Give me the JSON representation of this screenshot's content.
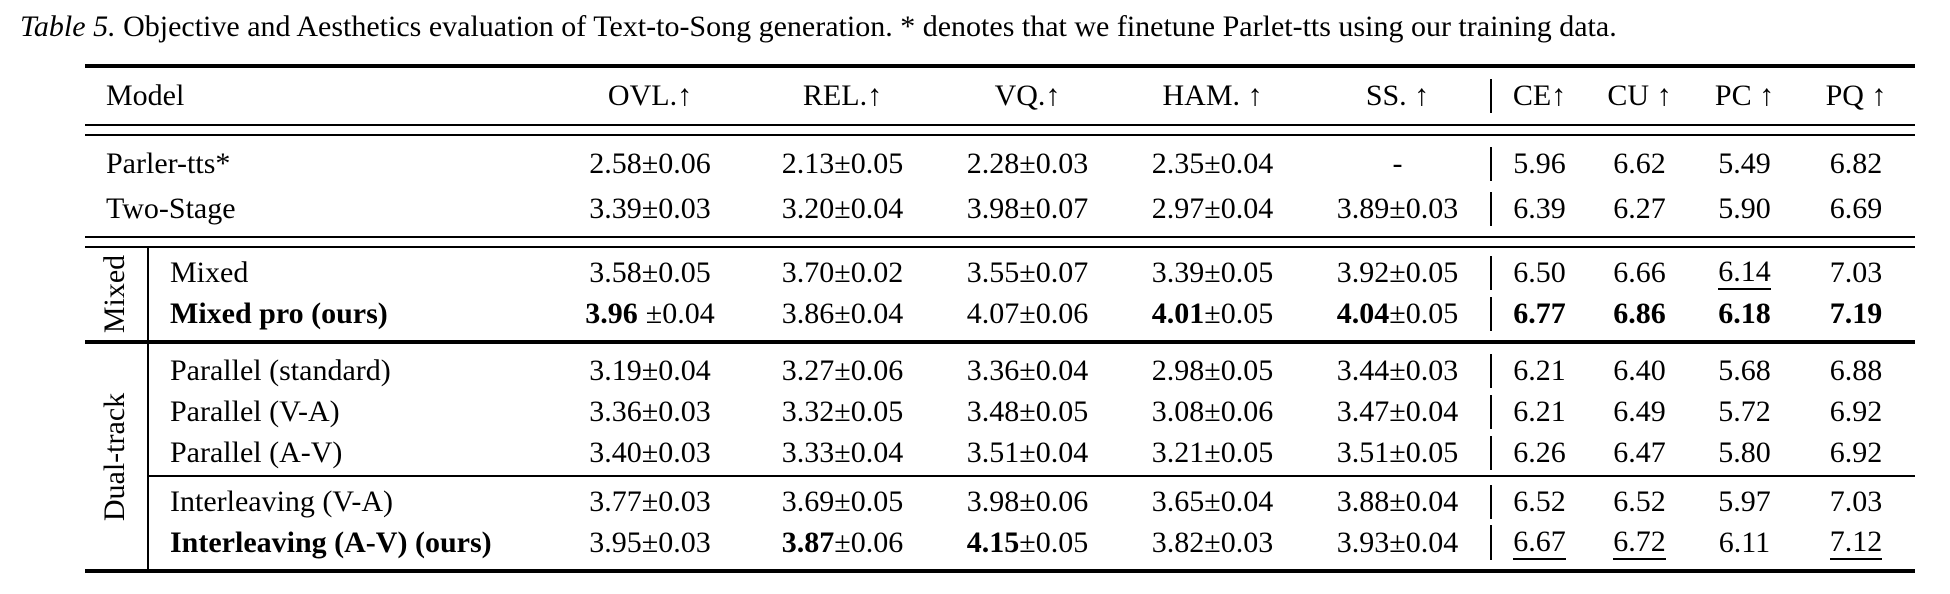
{
  "colors": {
    "ink": "#000000",
    "paper": "#ffffff"
  },
  "caption": {
    "title": "Table 5.",
    "body": " Objective and Aesthetics evaluation of Text-to-Song generation. * denotes that we finetune Parlet-tts using our training data."
  },
  "table": {
    "header": {
      "model": "Model",
      "metrics": [
        "OVL.↑",
        "REL.↑",
        "VQ.↑",
        "HAM. ↑",
        "SS. ↑"
      ],
      "aesthetics": [
        "CE↑",
        "CU ↑",
        "PC ↑",
        "PQ ↑"
      ]
    },
    "sections": [
      {
        "label": "",
        "groups": [
          [
            {
              "model": "Parler-tts*",
              "bold": false,
              "metrics": [
                {
                  "v": "2.58",
                  "pm": "±0.06"
                },
                {
                  "v": "2.13",
                  "pm": "±0.05"
                },
                {
                  "v": "2.28",
                  "pm": "±0.03"
                },
                {
                  "v": "2.35",
                  "pm": "±0.04"
                },
                {
                  "v": "-"
                }
              ],
              "aesthetics": [
                {
                  "v": "5.96"
                },
                {
                  "v": "6.62"
                },
                {
                  "v": "5.49"
                },
                {
                  "v": "6.82"
                }
              ]
            },
            {
              "model": "Two-Stage",
              "bold": false,
              "metrics": [
                {
                  "v": "3.39",
                  "pm": "±0.03"
                },
                {
                  "v": "3.20",
                  "pm": "±0.04"
                },
                {
                  "v": "3.98",
                  "pm": "±0.07"
                },
                {
                  "v": "2.97",
                  "pm": "±0.04"
                },
                {
                  "v": "3.89",
                  "pm": "±0.03"
                }
              ],
              "aesthetics": [
                {
                  "v": "6.39"
                },
                {
                  "v": "6.27"
                },
                {
                  "v": "5.90"
                },
                {
                  "v": "6.69"
                }
              ]
            }
          ]
        ]
      },
      {
        "label": "Mixed",
        "groups": [
          [
            {
              "model": "Mixed",
              "bold": false,
              "metrics": [
                {
                  "v": "3.58",
                  "pm": "±0.05"
                },
                {
                  "v": "3.70",
                  "pm": "±0.02"
                },
                {
                  "v": "3.55",
                  "pm": "±0.07"
                },
                {
                  "v": "3.39",
                  "pm": "±0.05"
                },
                {
                  "v": "3.92",
                  "pm": "±0.05"
                }
              ],
              "aesthetics": [
                {
                  "v": "6.50"
                },
                {
                  "v": "6.66"
                },
                {
                  "v": "6.14",
                  "u": true
                },
                {
                  "v": "7.03"
                }
              ]
            },
            {
              "model": "Mixed pro (ours)",
              "bold": true,
              "metrics": [
                {
                  "v": "3.96",
                  "pm": "±0.04",
                  "b": true,
                  "gap": true
                },
                {
                  "v": "3.86",
                  "pm": "±0.04"
                },
                {
                  "v": "4.07",
                  "pm": "±0.06"
                },
                {
                  "v": "4.01",
                  "pm": "±0.05",
                  "b": true
                },
                {
                  "v": "4.04",
                  "pm": "±0.05",
                  "b": true
                }
              ],
              "aesthetics": [
                {
                  "v": "6.77",
                  "b": true
                },
                {
                  "v": "6.86",
                  "b": true
                },
                {
                  "v": "6.18",
                  "b": true
                },
                {
                  "v": "7.19",
                  "b": true
                }
              ]
            }
          ]
        ]
      },
      {
        "label": "Dual-track",
        "groups": [
          [
            {
              "model": "Parallel (standard)",
              "bold": false,
              "metrics": [
                {
                  "v": "3.19",
                  "pm": "±0.04"
                },
                {
                  "v": "3.27",
                  "pm": "±0.06"
                },
                {
                  "v": "3.36",
                  "pm": "±0.04"
                },
                {
                  "v": "2.98",
                  "pm": "±0.05"
                },
                {
                  "v": "3.44",
                  "pm": "±0.03"
                }
              ],
              "aesthetics": [
                {
                  "v": "6.21"
                },
                {
                  "v": "6.40"
                },
                {
                  "v": "5.68"
                },
                {
                  "v": "6.88"
                }
              ]
            },
            {
              "model": "Parallel (V-A)",
              "bold": false,
              "metrics": [
                {
                  "v": "3.36",
                  "pm": "±0.03"
                },
                {
                  "v": "3.32",
                  "pm": "±0.05"
                },
                {
                  "v": "3.48",
                  "pm": "±0.05"
                },
                {
                  "v": "3.08",
                  "pm": "±0.06"
                },
                {
                  "v": "3.47",
                  "pm": "±0.04"
                }
              ],
              "aesthetics": [
                {
                  "v": "6.21"
                },
                {
                  "v": "6.49"
                },
                {
                  "v": "5.72"
                },
                {
                  "v": "6.92"
                }
              ]
            },
            {
              "model": "Parallel (A-V)",
              "bold": false,
              "metrics": [
                {
                  "v": "3.40",
                  "pm": "±0.03"
                },
                {
                  "v": "3.33",
                  "pm": "±0.04"
                },
                {
                  "v": "3.51",
                  "pm": "±0.04"
                },
                {
                  "v": "3.21",
                  "pm": "±0.05"
                },
                {
                  "v": "3.51",
                  "pm": "±0.05"
                }
              ],
              "aesthetics": [
                {
                  "v": "6.26"
                },
                {
                  "v": "6.47"
                },
                {
                  "v": "5.80"
                },
                {
                  "v": "6.92"
                }
              ]
            }
          ],
          [
            {
              "model": "Interleaving (V-A)",
              "bold": false,
              "metrics": [
                {
                  "v": "3.77",
                  "pm": "±0.03"
                },
                {
                  "v": "3.69",
                  "pm": "±0.05"
                },
                {
                  "v": "3.98",
                  "pm": "±0.06"
                },
                {
                  "v": "3.65",
                  "pm": "±0.04"
                },
                {
                  "v": "3.88",
                  "pm": "±0.04"
                }
              ],
              "aesthetics": [
                {
                  "v": "6.52"
                },
                {
                  "v": "6.52"
                },
                {
                  "v": "5.97"
                },
                {
                  "v": "7.03"
                }
              ]
            },
            {
              "model": "Interleaving (A-V) (ours)",
              "bold": true,
              "metrics": [
                {
                  "v": "3.95",
                  "pm": "±0.03"
                },
                {
                  "v": "3.87",
                  "pm": "±0.06",
                  "b": true
                },
                {
                  "v": "4.15",
                  "pm": "±0.05",
                  "b": true
                },
                {
                  "v": "3.82",
                  "pm": "±0.03"
                },
                {
                  "v": "3.93",
                  "pm": "±0.04"
                }
              ],
              "aesthetics": [
                {
                  "v": "6.67",
                  "u": true
                },
                {
                  "v": "6.72",
                  "u": true
                },
                {
                  "v": "6.11"
                },
                {
                  "v": "7.12",
                  "u": true
                }
              ]
            }
          ]
        ]
      }
    ]
  }
}
